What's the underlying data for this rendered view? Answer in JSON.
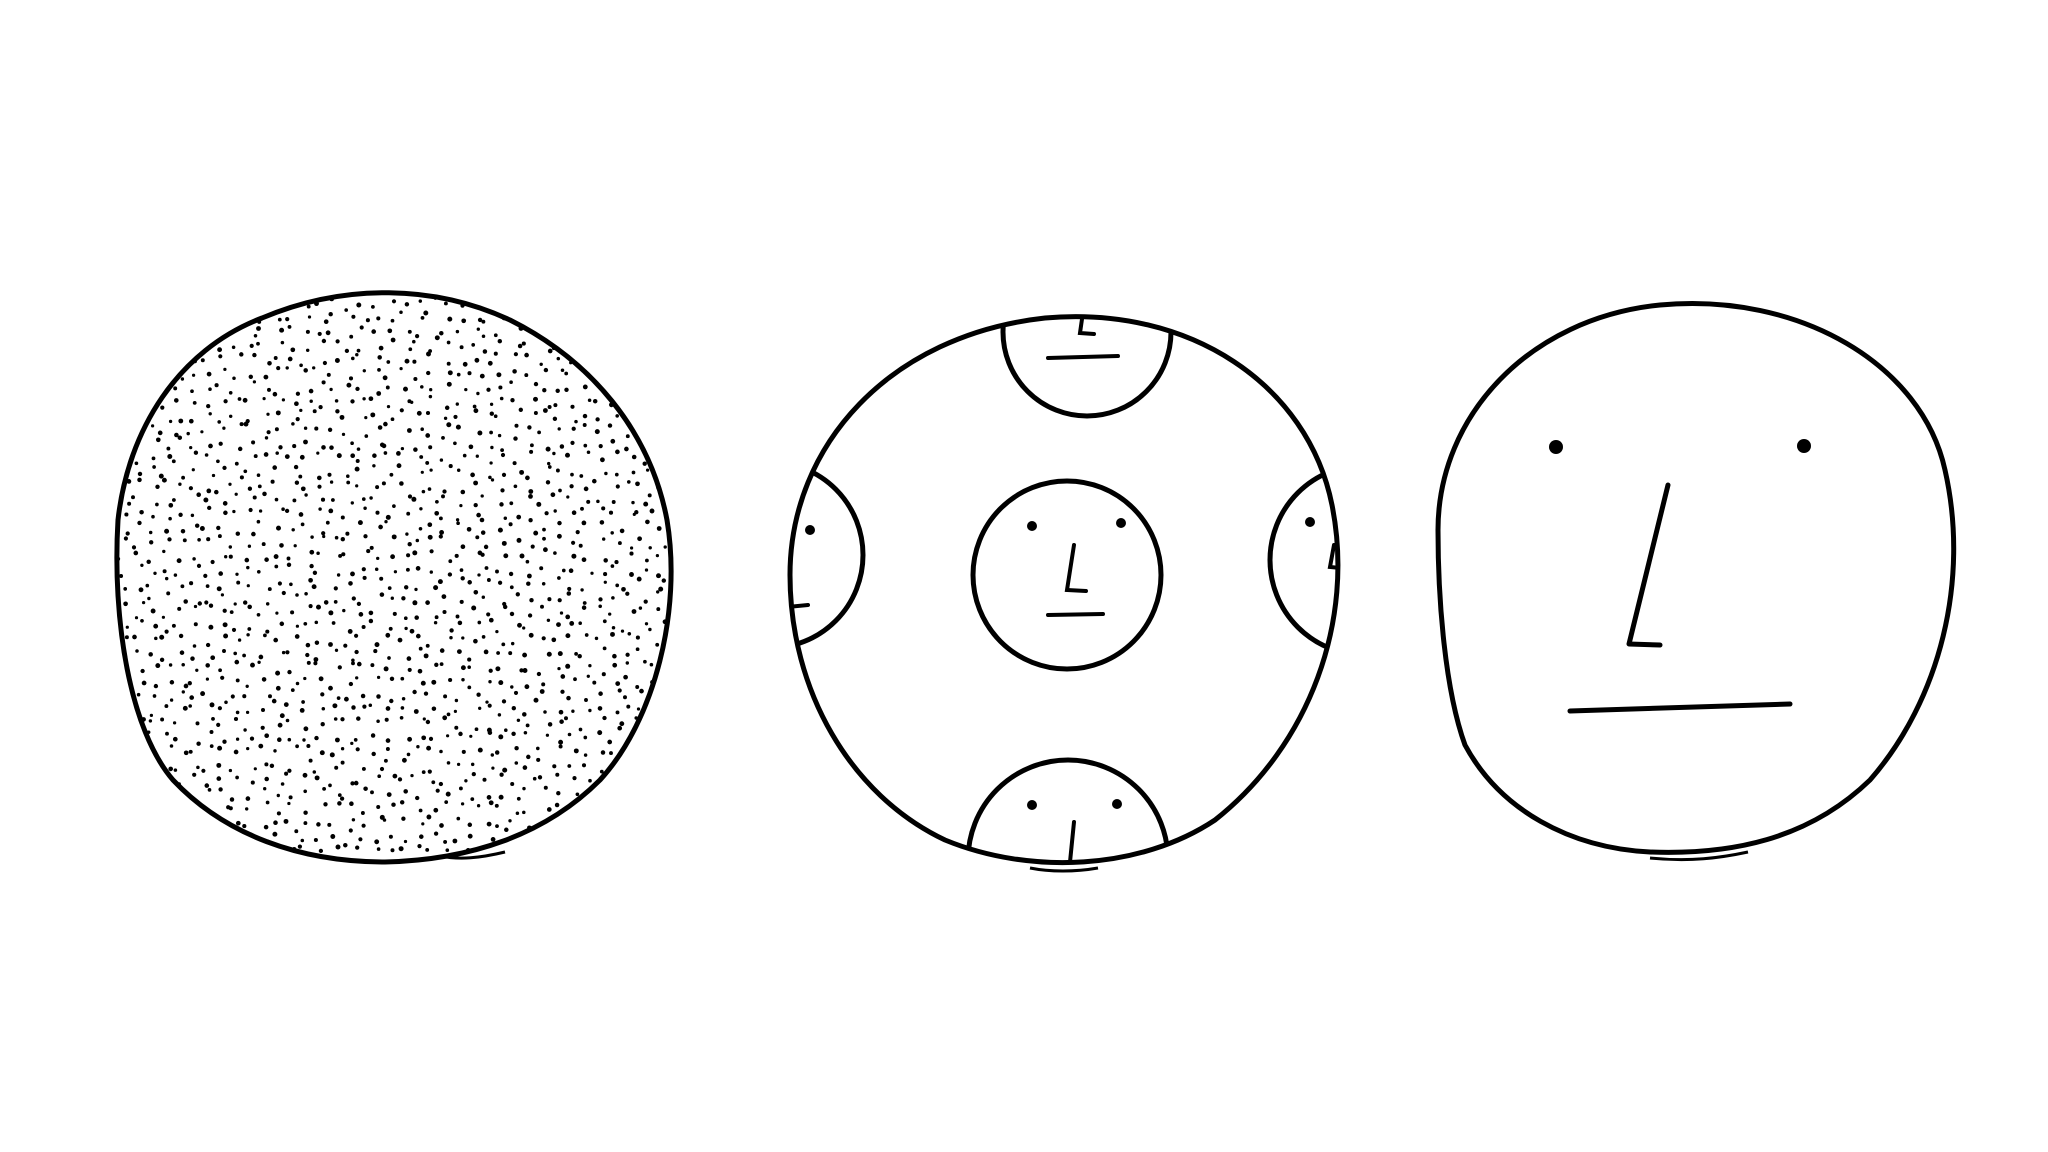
{
  "illustration": {
    "panels": [
      {
        "name": "dotted-circle",
        "fill": "stipple"
      },
      {
        "name": "circle-of-faces",
        "fill": "small-faces"
      },
      {
        "name": "large-face",
        "fill": "face"
      }
    ]
  },
  "colors": {
    "background": "#ffffff",
    "ink": "#000000"
  }
}
